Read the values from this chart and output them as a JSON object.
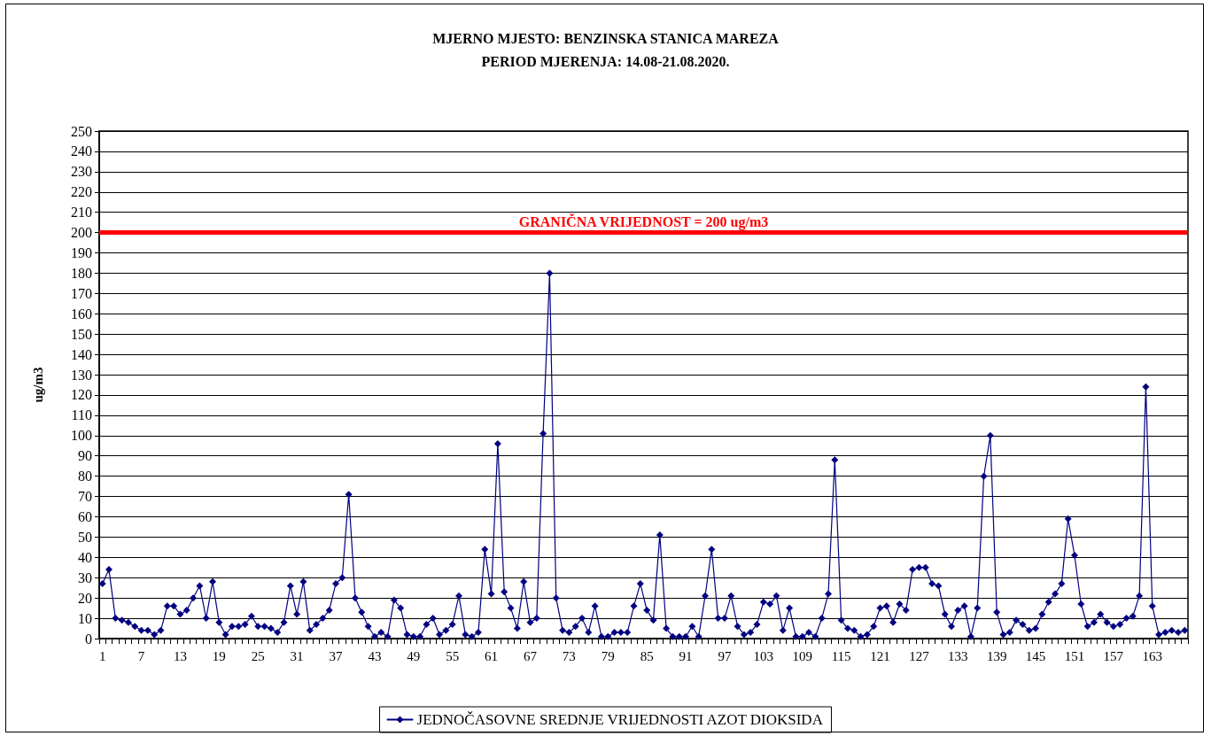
{
  "chart_data": {
    "type": "line",
    "title": "MJERNO MJESTO: BENZINSKA STANICA MAREZA",
    "subtitle": "PERIOD MJERENJA: 14.08-21.08.2020.",
    "ylabel": "ug/m3",
    "categories": [
      "1",
      null,
      null,
      null,
      null,
      null,
      "7",
      null,
      null,
      null,
      null,
      null,
      "13",
      null,
      null,
      null,
      null,
      null,
      "19",
      null,
      null,
      null,
      null,
      null,
      "25",
      null,
      null,
      null,
      null,
      null,
      "31",
      null,
      null,
      null,
      null,
      null,
      "37",
      null,
      null,
      null,
      null,
      null,
      "43",
      null,
      null,
      null,
      null,
      null,
      "49",
      null,
      null,
      null,
      null,
      null,
      "55",
      null,
      null,
      null,
      null,
      null,
      "61",
      null,
      null,
      null,
      null,
      null,
      "67",
      null,
      null,
      null,
      null,
      null,
      "73",
      null,
      null,
      null,
      null,
      null,
      "79",
      null,
      null,
      null,
      null,
      null,
      "85",
      null,
      null,
      null,
      null,
      null,
      "91",
      null,
      null,
      null,
      null,
      null,
      "97",
      null,
      null,
      null,
      null,
      null,
      "103",
      null,
      null,
      null,
      null,
      null,
      "109",
      null,
      null,
      null,
      null,
      null,
      "115",
      null,
      null,
      null,
      null,
      null,
      "121",
      null,
      null,
      null,
      null,
      null,
      "127",
      null,
      null,
      null,
      null,
      null,
      "133",
      null,
      null,
      null,
      null,
      null,
      "139",
      null,
      null,
      null,
      null,
      null,
      "145",
      null,
      null,
      null,
      null,
      null,
      "151",
      null,
      null,
      null,
      null,
      null,
      "157",
      null,
      null,
      null,
      null,
      null,
      "163",
      null,
      null,
      null,
      null,
      null
    ],
    "series": [
      {
        "name": "JEDNOČASOVNE SREDNJE VRIJEDNOSTI AZOT DIOKSIDA",
        "color": "#000080",
        "values": [
          27,
          34,
          10,
          9,
          8,
          6,
          4,
          4,
          2,
          4,
          16,
          16,
          12,
          14,
          20,
          26,
          10,
          28,
          8,
          2,
          6,
          6,
          7,
          11,
          6,
          6,
          5,
          3,
          8,
          26,
          12,
          28,
          4,
          7,
          10,
          14,
          27,
          30,
          71,
          20,
          13,
          6,
          1,
          3,
          1,
          19,
          15,
          2,
          1,
          1,
          7,
          10,
          2,
          4,
          7,
          21,
          2,
          1,
          3,
          44,
          22,
          96,
          23,
          15,
          5,
          28,
          8,
          10,
          101,
          180,
          20,
          4,
          3,
          6,
          10,
          3,
          16,
          1,
          1,
          3,
          3,
          3,
          16,
          27,
          14,
          9,
          51,
          5,
          1,
          1,
          1,
          6,
          1,
          21,
          44,
          10,
          10,
          21,
          6,
          2,
          3,
          7,
          18,
          17,
          21,
          4,
          15,
          1,
          1,
          3,
          1,
          10,
          22,
          88,
          9,
          5,
          4,
          1,
          2,
          6,
          15,
          16,
          8,
          17,
          14,
          34,
          35,
          35,
          27,
          26,
          12,
          6,
          14,
          16,
          1,
          15,
          80,
          100,
          13,
          2,
          3,
          9,
          7,
          4,
          5,
          12,
          18,
          22,
          27,
          59,
          41,
          17,
          6,
          8,
          12,
          8,
          6,
          7,
          10,
          11,
          21,
          124,
          16,
          2,
          3,
          4,
          3,
          4
        ]
      }
    ],
    "ylim": [
      0,
      250
    ],
    "yticks": [
      0,
      10,
      20,
      30,
      40,
      50,
      60,
      70,
      80,
      90,
      100,
      110,
      120,
      130,
      140,
      150,
      160,
      170,
      180,
      190,
      200,
      210,
      220,
      230,
      240,
      250
    ],
    "grid": "y",
    "legend": "bottom",
    "marker": "diamond",
    "line_style": "solid",
    "ref_lines": [
      {
        "axis": "y",
        "value": 200,
        "label": "GRANIČNA VRIJEDNOST = 200 ug/m3",
        "color": "#ff0000"
      }
    ]
  }
}
